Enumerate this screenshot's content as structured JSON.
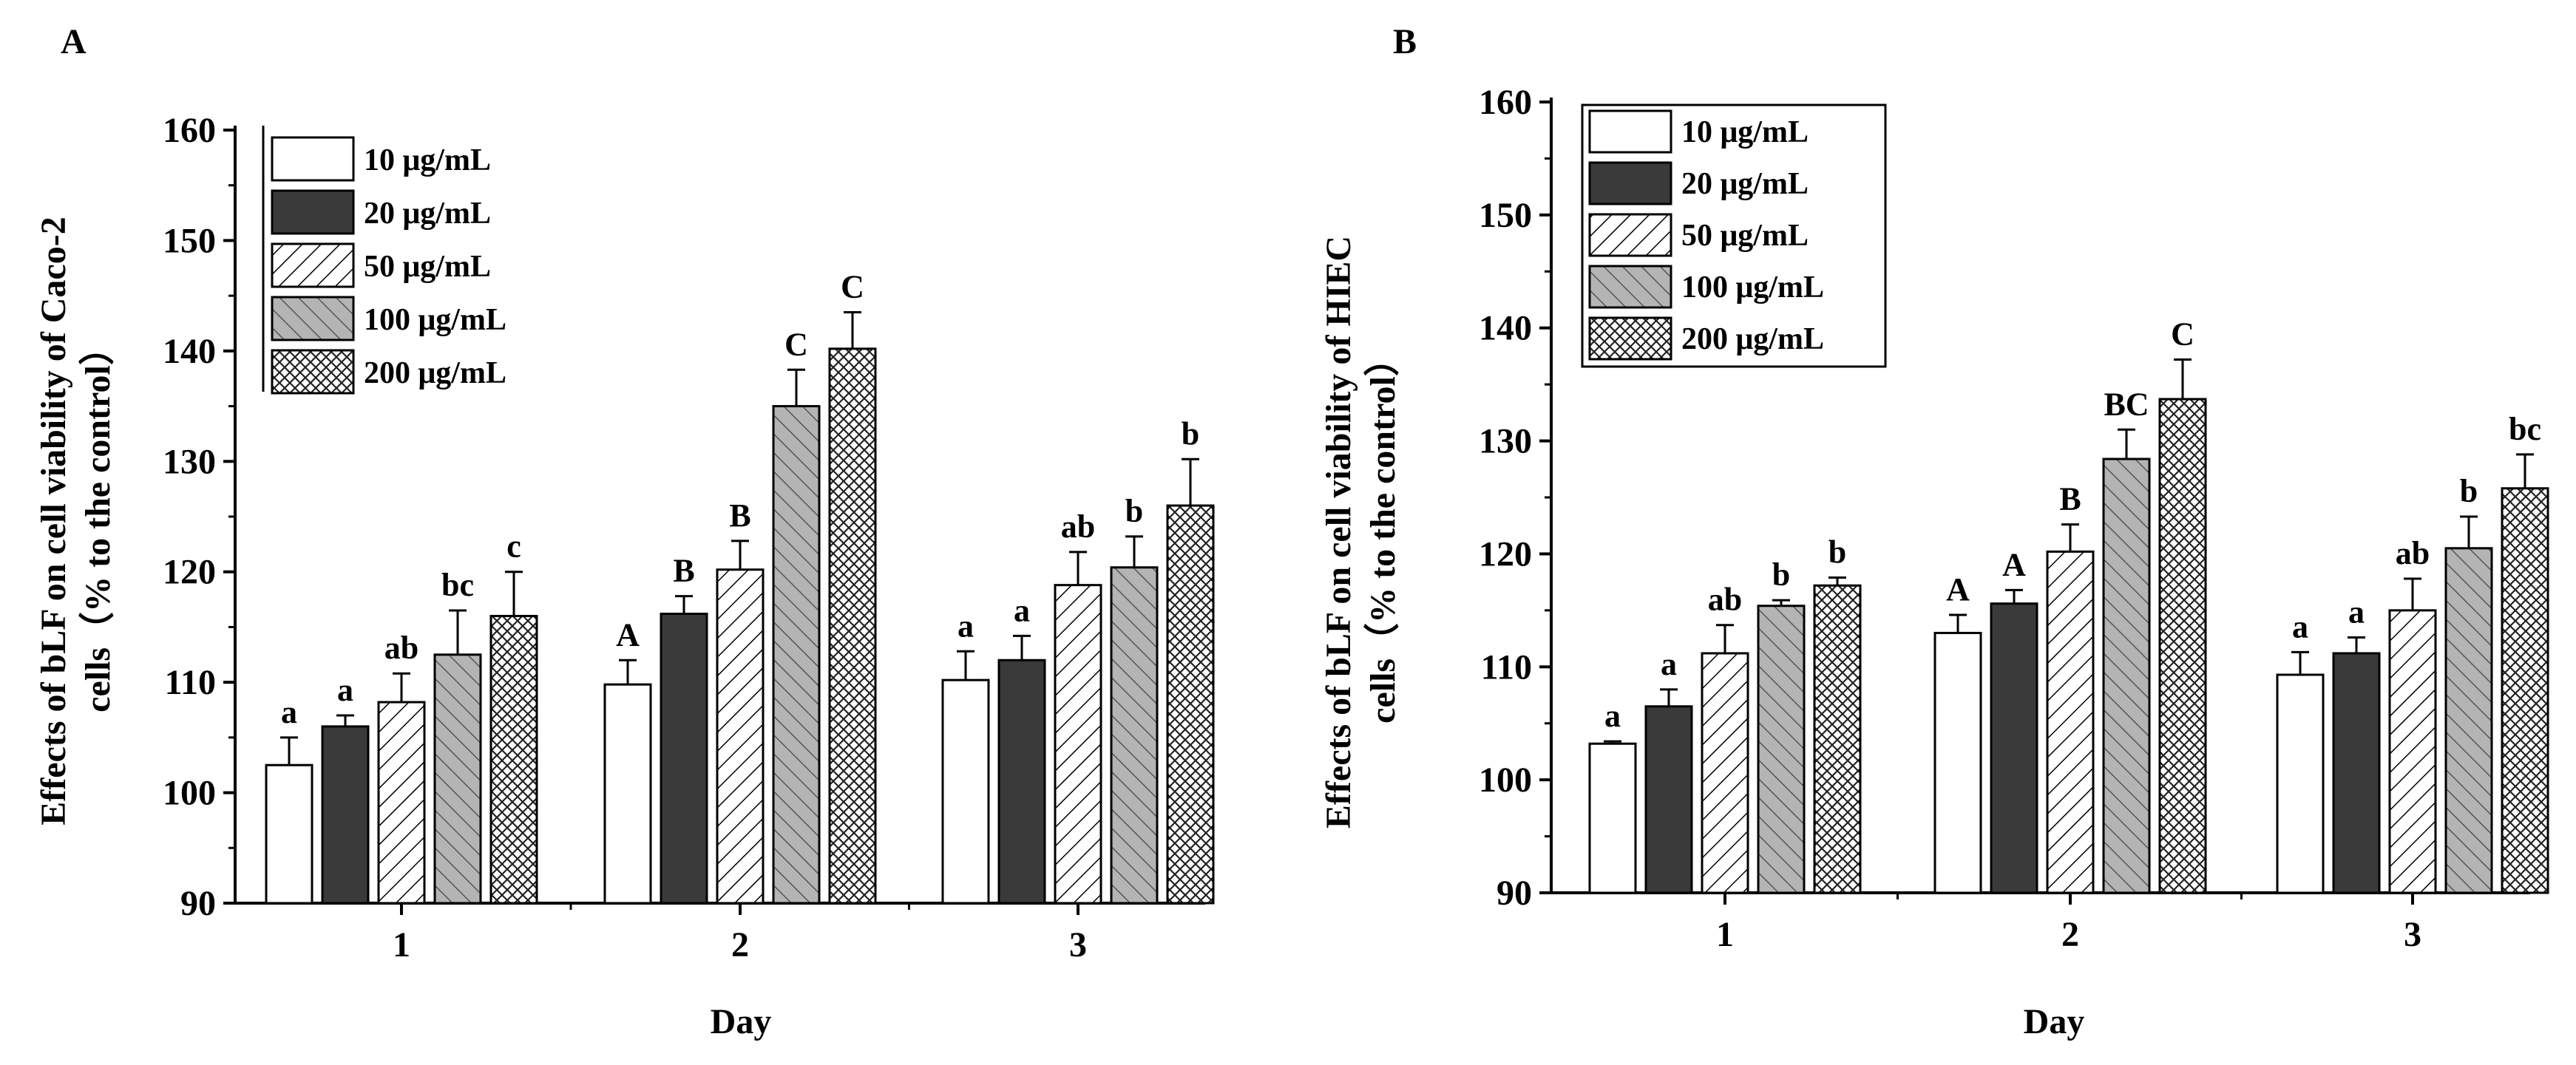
{
  "chart_data": [
    {
      "panel": "A",
      "type": "bar",
      "xlabel": "Day",
      "ylabel_line1": "Effects of bLF on cell viability of Caco-2",
      "ylabel_line2": "cells（% to the control）",
      "ylim": [
        90,
        160
      ],
      "yticks": [
        "90",
        "100",
        "110",
        "120",
        "130",
        "140",
        "150",
        "160"
      ],
      "categories": [
        "1",
        "2",
        "3"
      ],
      "series": [
        {
          "name": "10 μg/mL",
          "pattern": "white",
          "values": [
            102.5,
            109.8,
            110.2
          ],
          "errors": [
            2.5,
            2.2,
            2.6
          ],
          "letters": [
            "a",
            "A",
            "a"
          ]
        },
        {
          "name": "20 μg/mL",
          "pattern": "dark",
          "values": [
            106.0,
            116.2,
            112.0
          ],
          "errors": [
            1.0,
            1.6,
            2.2
          ],
          "letters": [
            "a",
            "B",
            "a"
          ]
        },
        {
          "name": "50 μg/mL",
          "pattern": "diag",
          "values": [
            108.2,
            120.2,
            118.8
          ],
          "errors": [
            2.6,
            2.6,
            3.0
          ],
          "letters": [
            "ab",
            "B",
            "ab"
          ]
        },
        {
          "name": "100 μg/mL",
          "pattern": "grey",
          "values": [
            112.5,
            135.0,
            120.4
          ],
          "errors": [
            4.0,
            3.3,
            2.8
          ],
          "letters": [
            "bc",
            "C",
            "b"
          ]
        },
        {
          "name": "200 μg/mL",
          "pattern": "cross",
          "values": [
            116.0,
            140.2,
            126.0
          ],
          "errors": [
            4.0,
            3.3,
            4.2
          ],
          "letters": [
            "c",
            "C",
            "b"
          ]
        }
      ]
    },
    {
      "panel": "B",
      "type": "bar",
      "xlabel": "Day",
      "ylabel_line1": "Effects of bLF on cell viability of HIEC",
      "ylabel_line2": "cells（% to the control）",
      "ylim": [
        90,
        160
      ],
      "yticks": [
        "90",
        "100",
        "110",
        "120",
        "130",
        "140",
        "150",
        "160"
      ],
      "categories": [
        "1",
        "2",
        "3"
      ],
      "series": [
        {
          "name": "10 μg/mL",
          "pattern": "white",
          "values": [
            103.2,
            113.0,
            109.3
          ],
          "errors": [
            0.2,
            1.6,
            2.0
          ],
          "letters": [
            "a",
            "A",
            "a"
          ]
        },
        {
          "name": "20 μg/mL",
          "pattern": "dark",
          "values": [
            106.5,
            115.6,
            111.2
          ],
          "errors": [
            1.5,
            1.2,
            1.4
          ],
          "letters": [
            "a",
            "A",
            "a"
          ]
        },
        {
          "name": "50 μg/mL",
          "pattern": "diag",
          "values": [
            111.2,
            120.2,
            115.0
          ],
          "errors": [
            2.5,
            2.4,
            2.8
          ],
          "letters": [
            "ab",
            "B",
            "ab"
          ]
        },
        {
          "name": "100 μg/mL",
          "pattern": "grey",
          "values": [
            115.4,
            128.4,
            120.5
          ],
          "errors": [
            0.5,
            2.6,
            2.8
          ],
          "letters": [
            "b",
            "BC",
            "b"
          ]
        },
        {
          "name": "200 μg/mL",
          "pattern": "cross",
          "values": [
            117.2,
            133.7,
            125.8
          ],
          "errors": [
            0.7,
            3.5,
            3.0
          ],
          "letters": [
            "b",
            "C",
            "bc"
          ]
        }
      ]
    }
  ],
  "colors": {
    "dark": "#3a3a3a",
    "grey": "#b4b4b4",
    "white": "#ffffff",
    "line": "#000000"
  }
}
